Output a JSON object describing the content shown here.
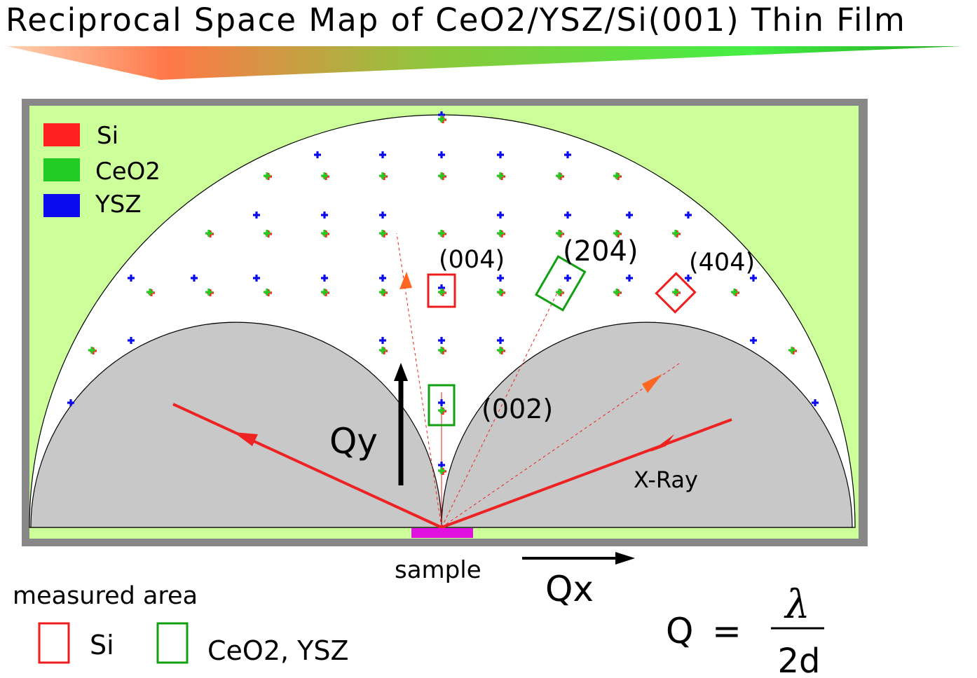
{
  "title": "Reciprocal Space Map of CeO2/YSZ/Si(001) Thin Film",
  "legend": [
    {
      "label": "Si",
      "color": "#ff2020"
    },
    {
      "label": "CeO2",
      "color": "#22cc22"
    },
    {
      "label": "YSZ",
      "color": "#0a0aee"
    }
  ],
  "reflections": [
    "(004)",
    "(204)",
    "(404)",
    "(002)"
  ],
  "axes": {
    "qy": "Qy",
    "qx": "Qx"
  },
  "xray_label": "X-Ray",
  "sample_label": "sample",
  "measured_area": {
    "heading": "measured area",
    "items": [
      {
        "label": "Si",
        "color": "#ee1c1c"
      },
      {
        "label": "CeO2, YSZ",
        "color": "#12a012"
      }
    ]
  },
  "formula": {
    "lhs": "Q",
    "eq": "=",
    "numerator": "λ",
    "denominator": "2d"
  },
  "colors": {
    "region": "#ccff99",
    "forbidden": "#c8c8c8",
    "frame": "#888888",
    "beam": "#ee2222",
    "sample": "#e010e0",
    "arrowhead": "#ff6622"
  }
}
